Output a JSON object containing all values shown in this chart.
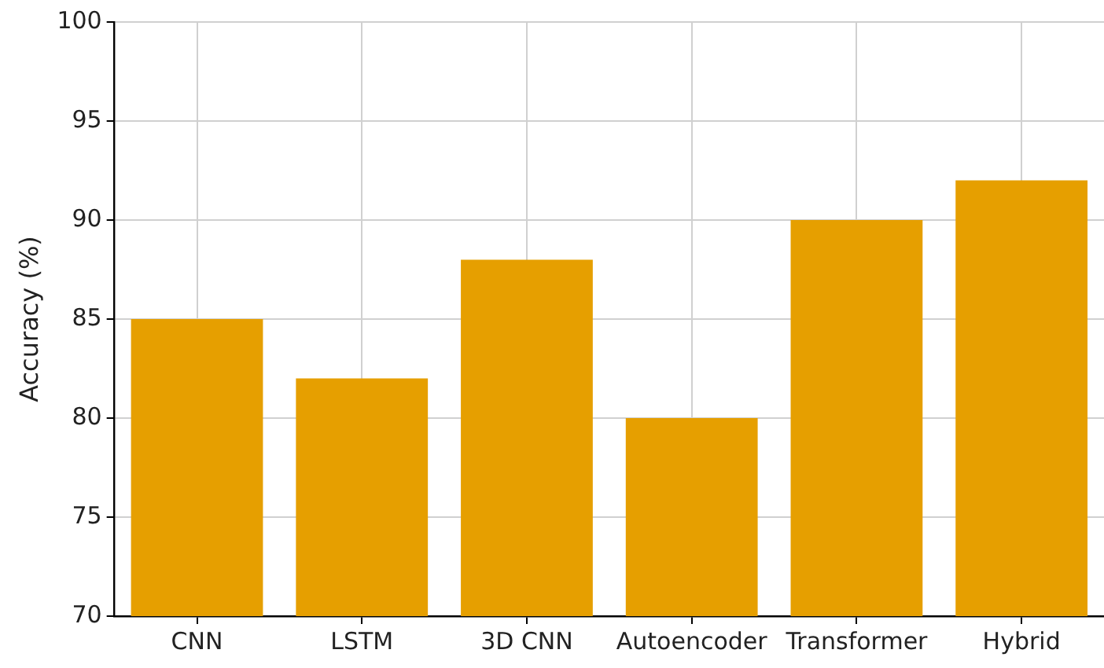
{
  "chart_data": {
    "type": "bar",
    "ylabel": "Accuracy (%)",
    "categories": [
      "CNN",
      "LSTM",
      "3D CNN",
      "Autoencoder",
      "Transformer",
      "Hybrid"
    ],
    "values": [
      85,
      82,
      88,
      80,
      90,
      92
    ],
    "color": "#e69f00",
    "ylim": [
      70,
      100
    ],
    "yticks": [
      70,
      75,
      80,
      85,
      90,
      95,
      100
    ],
    "grid": true
  }
}
